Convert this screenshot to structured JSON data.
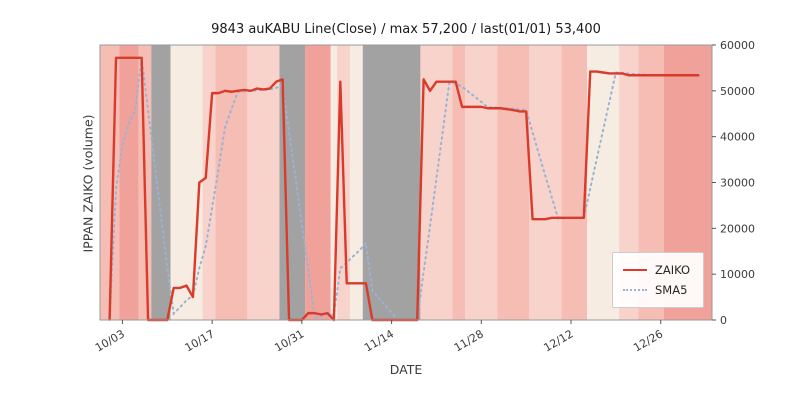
{
  "title": "9843 auKABU Line(Close) / max 57,200 / last(01/01) 53,400",
  "chart_data": {
    "type": "line",
    "title": "9843 auKABU Line(Close) / max 57,200 / last(01/01) 53,400",
    "xlabel": "DATE",
    "ylabel": "IPPAN ZAIKO (volume)",
    "ylim": [
      0,
      60000
    ],
    "y_ticks": [
      0,
      10000,
      20000,
      30000,
      40000,
      50000,
      60000
    ],
    "x_start_date": "10/01",
    "x_end_date": "01/01",
    "x_tick_labels": [
      "10/03",
      "10/17",
      "10/31",
      "11/14",
      "11/28",
      "12/12",
      "12/26"
    ],
    "x_tick_days": [
      2,
      16,
      30,
      44,
      58,
      72,
      86
    ],
    "max_value": 57200,
    "last_value": 53400,
    "last_date": "01/01",
    "legend": {
      "position": "lower right",
      "entries": [
        "ZAIKO",
        "SMA5"
      ]
    },
    "series": [
      {
        "name": "ZAIKO",
        "color": "#d93b2b",
        "style": "solid",
        "values": [
          0,
          57200,
          57200,
          57200,
          57200,
          57200,
          0,
          0,
          0,
          0,
          7000,
          7000,
          7500,
          5000,
          30000,
          31000,
          49500,
          49500,
          50000,
          49800,
          50000,
          50200,
          50000,
          50500,
          50300,
          50500,
          52000,
          52500,
          0,
          0,
          0,
          1500,
          1500,
          1200,
          1500,
          0,
          52000,
          8000,
          8000,
          8000,
          8000,
          0,
          0,
          0,
          0,
          0,
          0,
          0,
          0,
          52500,
          50000,
          52000,
          52000,
          52000,
          52000,
          46500,
          46500,
          46500,
          46500,
          46200,
          46200,
          46200,
          46000,
          45800,
          45500,
          45500,
          22000,
          22000,
          22000,
          22300,
          22300,
          22300,
          22300,
          22300,
          22300,
          54200,
          54200,
          54000,
          53800,
          53800,
          53800,
          53400,
          53400,
          53400,
          53400,
          53400,
          53400,
          53400,
          53400,
          53400,
          53400,
          53400,
          53400
        ]
      },
      {
        "name": "SMA5",
        "color": "#9ab3d5",
        "style": "dotted",
        "window": 5,
        "derived_from": "ZAIKO"
      }
    ],
    "band_palette": {
      "strong": "#f0a29a",
      "mid": "#f5bdb4",
      "light": "#f8d3cb",
      "cream": "#f6ece1",
      "gray": "#a2a2a2"
    },
    "background_bands": [
      {
        "from": 0,
        "to": 1,
        "color": "mid"
      },
      {
        "from": 2,
        "to": 4,
        "color": "strong"
      },
      {
        "from": 5,
        "to": 6,
        "color": "mid"
      },
      {
        "from": 7,
        "to": 9,
        "color": "gray"
      },
      {
        "from": 10,
        "to": 14,
        "color": "cream"
      },
      {
        "from": 15,
        "to": 16,
        "color": "light"
      },
      {
        "from": 17,
        "to": 21,
        "color": "mid"
      },
      {
        "from": 22,
        "to": 26,
        "color": "light"
      },
      {
        "from": 27,
        "to": 30,
        "color": "gray"
      },
      {
        "from": 31,
        "to": 34,
        "color": "strong"
      },
      {
        "from": 35,
        "to": 35,
        "color": "cream"
      },
      {
        "from": 36,
        "to": 37,
        "color": "light"
      },
      {
        "from": 38,
        "to": 39,
        "color": "cream"
      },
      {
        "from": 40,
        "to": 48,
        "color": "gray"
      },
      {
        "from": 49,
        "to": 53,
        "color": "light"
      },
      {
        "from": 54,
        "to": 55,
        "color": "mid"
      },
      {
        "from": 56,
        "to": 60,
        "color": "light"
      },
      {
        "from": 61,
        "to": 65,
        "color": "mid"
      },
      {
        "from": 66,
        "to": 70,
        "color": "light"
      },
      {
        "from": 71,
        "to": 74,
        "color": "mid"
      },
      {
        "from": 75,
        "to": 79,
        "color": "cream"
      },
      {
        "from": 80,
        "to": 82,
        "color": "light"
      },
      {
        "from": 83,
        "to": 86,
        "color": "mid"
      },
      {
        "from": 87,
        "to": 92,
        "color": "strong"
      }
    ]
  }
}
